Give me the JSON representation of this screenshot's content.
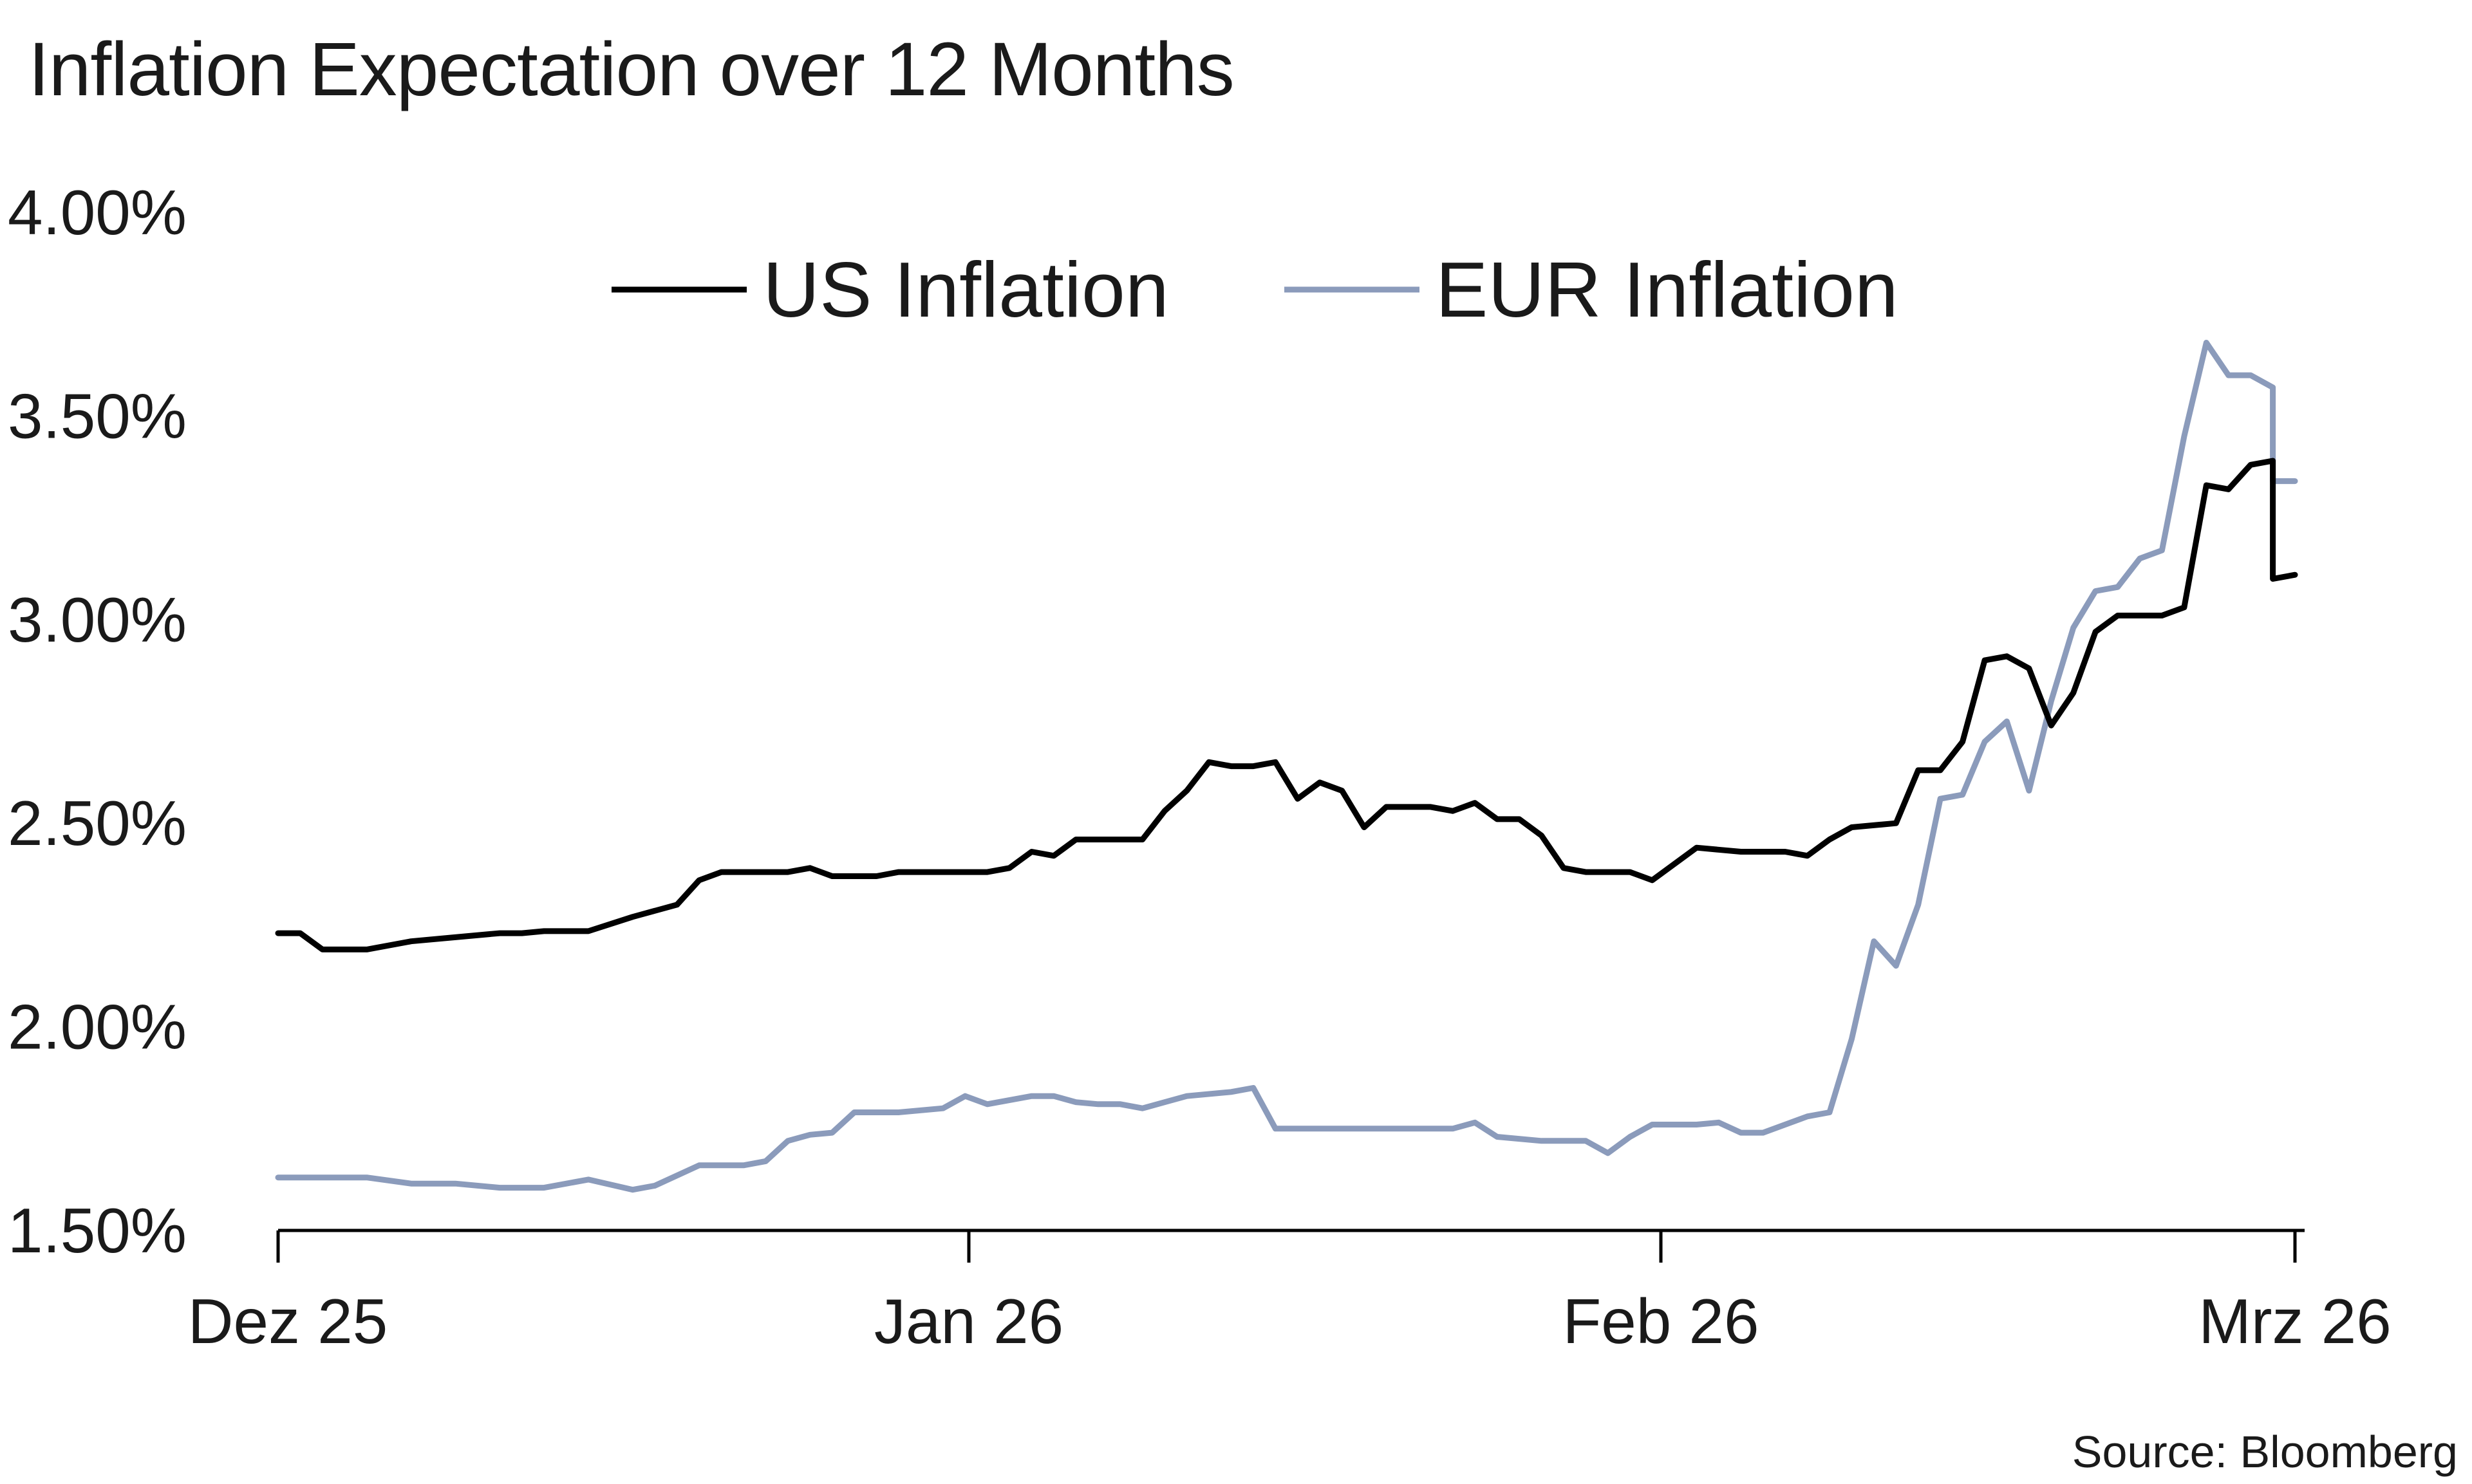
{
  "source": "Source: Bloomberg",
  "chart_data": {
    "type": "line",
    "title": "Inflation Expectation over 12 Months",
    "xlabel": "",
    "ylabel": "",
    "x_tick_labels": [
      "Dez 25",
      "Jan 26",
      "Feb 26",
      "Mrz 26"
    ],
    "y_tick_labels": [
      "1.50%",
      "2.00%",
      "2.50%",
      "3.00%",
      "3.50%",
      "4.00%"
    ],
    "ylim": [
      1.5,
      4.0
    ],
    "grid": false,
    "legend_position": "top-center",
    "x_domain": [
      "2025-12-01",
      "2026-03-02"
    ],
    "series": [
      {
        "name": "US Inflation",
        "color": "#000000",
        "points": [
          [
            "2025-12-01",
            2.23
          ],
          [
            "2025-12-02",
            2.23
          ],
          [
            "2025-12-03",
            2.19
          ],
          [
            "2025-12-05",
            2.19
          ],
          [
            "2025-12-07",
            2.21
          ],
          [
            "2025-12-09",
            2.22
          ],
          [
            "2025-12-11",
            2.23
          ],
          [
            "2025-12-12",
            2.23
          ],
          [
            "2025-12-13",
            2.235
          ],
          [
            "2025-12-15",
            2.235
          ],
          [
            "2025-12-17",
            2.27
          ],
          [
            "2025-12-19",
            2.3
          ],
          [
            "2025-12-20",
            2.36
          ],
          [
            "2025-12-21",
            2.38
          ],
          [
            "2025-12-24",
            2.38
          ],
          [
            "2025-12-25",
            2.39
          ],
          [
            "2025-12-26",
            2.37
          ],
          [
            "2025-12-28",
            2.37
          ],
          [
            "2025-12-29",
            2.38
          ],
          [
            "2026-01-02",
            2.38
          ],
          [
            "2026-01-03",
            2.39
          ],
          [
            "2026-01-04",
            2.43
          ],
          [
            "2026-01-05",
            2.42
          ],
          [
            "2026-01-06",
            2.46
          ],
          [
            "2026-01-09",
            2.46
          ],
          [
            "2026-01-10",
            2.53
          ],
          [
            "2026-01-11",
            2.58
          ],
          [
            "2026-01-12",
            2.65
          ],
          [
            "2026-01-13",
            2.64
          ],
          [
            "2026-01-14",
            2.64
          ],
          [
            "2026-01-15",
            2.65
          ],
          [
            "2026-01-16",
            2.56
          ],
          [
            "2026-01-17",
            2.6
          ],
          [
            "2026-01-18",
            2.58
          ],
          [
            "2026-01-19",
            2.49
          ],
          [
            "2026-01-20",
            2.54
          ],
          [
            "2026-01-22",
            2.54
          ],
          [
            "2026-01-23",
            2.53
          ],
          [
            "2026-01-24",
            2.55
          ],
          [
            "2026-01-25",
            2.51
          ],
          [
            "2026-01-26",
            2.51
          ],
          [
            "2026-01-27",
            2.47
          ],
          [
            "2026-01-28",
            2.39
          ],
          [
            "2026-01-29",
            2.38
          ],
          [
            "2026-01-31",
            2.38
          ],
          [
            "2026-02-01",
            2.36
          ],
          [
            "2026-02-02",
            2.4
          ],
          [
            "2026-02-03",
            2.44
          ],
          [
            "2026-02-05",
            2.43
          ],
          [
            "2026-02-06",
            2.43
          ],
          [
            "2026-02-07",
            2.43
          ],
          [
            "2026-02-08",
            2.42
          ],
          [
            "2026-02-09",
            2.46
          ],
          [
            "2026-02-10",
            2.49
          ],
          [
            "2026-02-12",
            2.5
          ],
          [
            "2026-02-13",
            2.63
          ],
          [
            "2026-02-14",
            2.63
          ],
          [
            "2026-02-15",
            2.7
          ],
          [
            "2026-02-16",
            2.9
          ],
          [
            "2026-02-17",
            2.91
          ],
          [
            "2026-02-18",
            2.88
          ],
          [
            "2026-02-19",
            2.74
          ],
          [
            "2026-02-20",
            2.82
          ],
          [
            "2026-02-21",
            2.97
          ],
          [
            "2026-02-22",
            3.01
          ],
          [
            "2026-02-23",
            3.01
          ],
          [
            "2026-02-24",
            3.01
          ],
          [
            "2026-02-25",
            3.03
          ],
          [
            "2026-02-26",
            3.33
          ],
          [
            "2026-02-27",
            3.32
          ],
          [
            "2026-02-28",
            3.38
          ],
          [
            "2026-03-01",
            3.39
          ],
          [
            "2026-03-01",
            3.1
          ],
          [
            "2026-03-02",
            3.11
          ]
        ]
      },
      {
        "name": "EUR Inflation",
        "color": "#8b9bbb",
        "points": [
          [
            "2025-12-01",
            1.63
          ],
          [
            "2025-12-03",
            1.63
          ],
          [
            "2025-12-05",
            1.63
          ],
          [
            "2025-12-07",
            1.615
          ],
          [
            "2025-12-09",
            1.615
          ],
          [
            "2025-12-11",
            1.605
          ],
          [
            "2025-12-13",
            1.605
          ],
          [
            "2025-12-15",
            1.625
          ],
          [
            "2025-12-17",
            1.6
          ],
          [
            "2025-12-18",
            1.61
          ],
          [
            "2025-12-20",
            1.66
          ],
          [
            "2025-12-22",
            1.66
          ],
          [
            "2025-12-23",
            1.67
          ],
          [
            "2025-12-24",
            1.72
          ],
          [
            "2025-12-25",
            1.735
          ],
          [
            "2025-12-26",
            1.74
          ],
          [
            "2025-12-27",
            1.79
          ],
          [
            "2025-12-29",
            1.79
          ],
          [
            "2025-12-31",
            1.8
          ],
          [
            "2026-01-01",
            1.83
          ],
          [
            "2026-01-02",
            1.81
          ],
          [
            "2026-01-04",
            1.83
          ],
          [
            "2026-01-05",
            1.83
          ],
          [
            "2026-01-06",
            1.815
          ],
          [
            "2026-01-07",
            1.81
          ],
          [
            "2026-01-08",
            1.81
          ],
          [
            "2026-01-09",
            1.8
          ],
          [
            "2026-01-10",
            1.815
          ],
          [
            "2026-01-11",
            1.83
          ],
          [
            "2026-01-13",
            1.84
          ],
          [
            "2026-01-14",
            1.85
          ],
          [
            "2026-01-15",
            1.75
          ],
          [
            "2026-01-16",
            1.75
          ],
          [
            "2026-01-19",
            1.75
          ],
          [
            "2026-01-22",
            1.75
          ],
          [
            "2026-01-23",
            1.75
          ],
          [
            "2026-01-24",
            1.765
          ],
          [
            "2026-01-25",
            1.73
          ],
          [
            "2026-01-27",
            1.72
          ],
          [
            "2026-01-29",
            1.72
          ],
          [
            "2026-01-30",
            1.69
          ],
          [
            "2026-01-31",
            1.73
          ],
          [
            "2026-02-01",
            1.76
          ],
          [
            "2026-02-03",
            1.76
          ],
          [
            "2026-02-04",
            1.765
          ],
          [
            "2026-02-05",
            1.74
          ],
          [
            "2026-02-06",
            1.74
          ],
          [
            "2026-02-08",
            1.78
          ],
          [
            "2026-02-09",
            1.79
          ],
          [
            "2026-02-10",
            1.97
          ],
          [
            "2026-02-11",
            2.21
          ],
          [
            "2026-02-12",
            2.15
          ],
          [
            "2026-02-13",
            2.3
          ],
          [
            "2026-02-14",
            2.56
          ],
          [
            "2026-02-15",
            2.57
          ],
          [
            "2026-02-16",
            2.7
          ],
          [
            "2026-02-17",
            2.75
          ],
          [
            "2026-02-18",
            2.58
          ],
          [
            "2026-02-19",
            2.8
          ],
          [
            "2026-02-20",
            2.98
          ],
          [
            "2026-02-21",
            3.07
          ],
          [
            "2026-02-22",
            3.08
          ],
          [
            "2026-02-23",
            3.15
          ],
          [
            "2026-02-24",
            3.17
          ],
          [
            "2026-02-25",
            3.45
          ],
          [
            "2026-02-26",
            3.68
          ],
          [
            "2026-02-27",
            3.6
          ],
          [
            "2026-02-28",
            3.6
          ],
          [
            "2026-03-01",
            3.57
          ],
          [
            "2026-03-01",
            3.34
          ],
          [
            "2026-03-02",
            3.34
          ]
        ]
      }
    ]
  }
}
